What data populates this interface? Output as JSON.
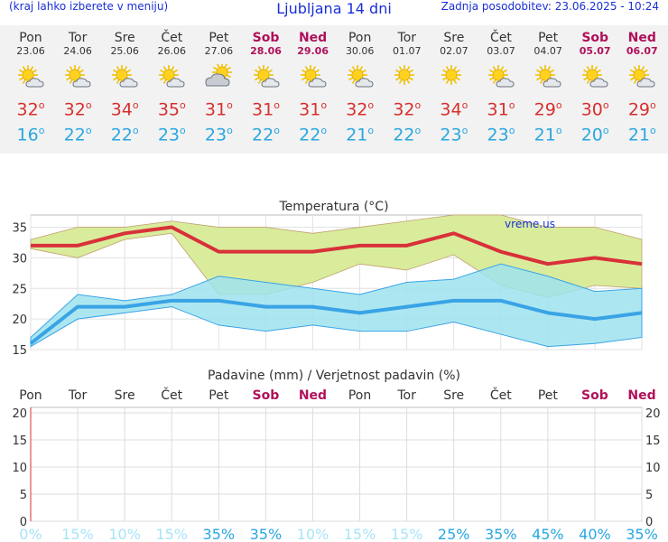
{
  "header": {
    "left": "(kraj lahko izberete v meniju)",
    "title": "Ljubljana 14 dni",
    "updated": "Zadnja posodobitev: 23.06.2025 - 10:24"
  },
  "days": [
    {
      "name": "Pon",
      "date": "23.06",
      "weekend": false,
      "icon": "sun-cloud-icon",
      "tmax": "32",
      "tmin": "16"
    },
    {
      "name": "Tor",
      "date": "24.06",
      "weekend": false,
      "icon": "sun-cloud-icon",
      "tmax": "32",
      "tmin": "22"
    },
    {
      "name": "Sre",
      "date": "25.06",
      "weekend": false,
      "icon": "sun-cloud-icon",
      "tmax": "34",
      "tmin": "22"
    },
    {
      "name": "Čet",
      "date": "26.06",
      "weekend": false,
      "icon": "sun-cloud-icon",
      "tmax": "35",
      "tmin": "23"
    },
    {
      "name": "Pet",
      "date": "27.06",
      "weekend": false,
      "icon": "cloud-sun-icon",
      "tmax": "31",
      "tmin": "23"
    },
    {
      "name": "Sob",
      "date": "28.06",
      "weekend": true,
      "icon": "sun-cloud-icon",
      "tmax": "31",
      "tmin": "22"
    },
    {
      "name": "Ned",
      "date": "29.06",
      "weekend": true,
      "icon": "sun-cloud-icon",
      "tmax": "31",
      "tmin": "22"
    },
    {
      "name": "Pon",
      "date": "30.06",
      "weekend": false,
      "icon": "sun-cloud-icon",
      "tmax": "32",
      "tmin": "21"
    },
    {
      "name": "Tor",
      "date": "01.07",
      "weekend": false,
      "icon": "sun-icon",
      "tmax": "32",
      "tmin": "22"
    },
    {
      "name": "Sre",
      "date": "02.07",
      "weekend": false,
      "icon": "sun-icon",
      "tmax": "34",
      "tmin": "23"
    },
    {
      "name": "Čet",
      "date": "03.07",
      "weekend": false,
      "icon": "sun-cloud-icon",
      "tmax": "31",
      "tmin": "23"
    },
    {
      "name": "Pet",
      "date": "04.07",
      "weekend": false,
      "icon": "sun-cloud-icon",
      "tmax": "29",
      "tmin": "21"
    },
    {
      "name": "Sob",
      "date": "05.07",
      "weekend": true,
      "icon": "sun-cloud-icon",
      "tmax": "30",
      "tmin": "20"
    },
    {
      "name": "Ned",
      "date": "06.07",
      "weekend": true,
      "icon": "sun-cloud-icon",
      "tmax": "29",
      "tmin": "21"
    }
  ],
  "chart_data": [
    {
      "type": "line",
      "title": "Temperatura (°C)",
      "watermark": "vreme.us",
      "categories": [
        "Pon",
        "Tor",
        "Sre",
        "Čet",
        "Pet",
        "Sob",
        "Ned",
        "Pon",
        "Tor",
        "Sre",
        "Čet",
        "Pet",
        "Sob",
        "Ned"
      ],
      "ylim": [
        15,
        37
      ],
      "yticks": [
        15,
        20,
        25,
        30,
        35
      ],
      "grid": true,
      "series": [
        {
          "values": [
            32,
            32,
            34,
            35,
            31,
            31,
            31,
            32,
            32,
            34,
            31,
            29,
            30,
            29
          ],
          "band_upper": [
            33,
            35,
            35,
            36,
            35,
            35,
            34,
            35,
            36,
            37,
            37,
            35,
            35,
            33
          ],
          "band_lower": [
            31.5,
            30,
            33,
            34,
            24,
            24,
            26,
            29,
            28,
            30.5,
            25.5,
            23.5,
            25.5,
            25
          ]
        },
        {
          "values": [
            16,
            22,
            22,
            23,
            23,
            22,
            22,
            21,
            22,
            23,
            23,
            21,
            20,
            21
          ],
          "band_upper": [
            17,
            24,
            23,
            24,
            27,
            26,
            25,
            24,
            26,
            26.5,
            29,
            27,
            24.5,
            25
          ],
          "band_lower": [
            15.5,
            20,
            21,
            22,
            19,
            18,
            19,
            18,
            18,
            19.5,
            17.5,
            15.5,
            16,
            17
          ]
        }
      ],
      "colors": {
        "max_line": "#d8313a",
        "max_band": "#d9ec9c",
        "min_line": "#3aa3e6",
        "min_band": "#9de3ef",
        "overlap_band": "#88d48a"
      }
    },
    {
      "type": "bar",
      "title": "Padavine (mm) / Verjetnost padavin (%)",
      "categories": [
        "Pon",
        "Tor",
        "Sre",
        "Čet",
        "Pet",
        "Sob",
        "Ned",
        "Pon",
        "Tor",
        "Sre",
        "Čet",
        "Pet",
        "Sob",
        "Ned"
      ],
      "weekend": [
        false,
        false,
        false,
        false,
        false,
        true,
        true,
        false,
        false,
        false,
        false,
        false,
        true,
        true
      ],
      "ylim": [
        0,
        21
      ],
      "yticks": [
        0,
        5,
        10,
        15,
        20
      ],
      "grid": true,
      "values": [
        0,
        0,
        0,
        0,
        0,
        0,
        0,
        0,
        0,
        0,
        0,
        0,
        0,
        0
      ],
      "probabilities": [
        "0%",
        "15%",
        "10%",
        "15%",
        "35%",
        "35%",
        "10%",
        "15%",
        "15%",
        "25%",
        "35%",
        "45%",
        "40%",
        "35%"
      ],
      "colors": {
        "prob_low": "#a9e4f7",
        "prob_high": "#29a7e0",
        "weekend": "#b0105a"
      }
    }
  ]
}
